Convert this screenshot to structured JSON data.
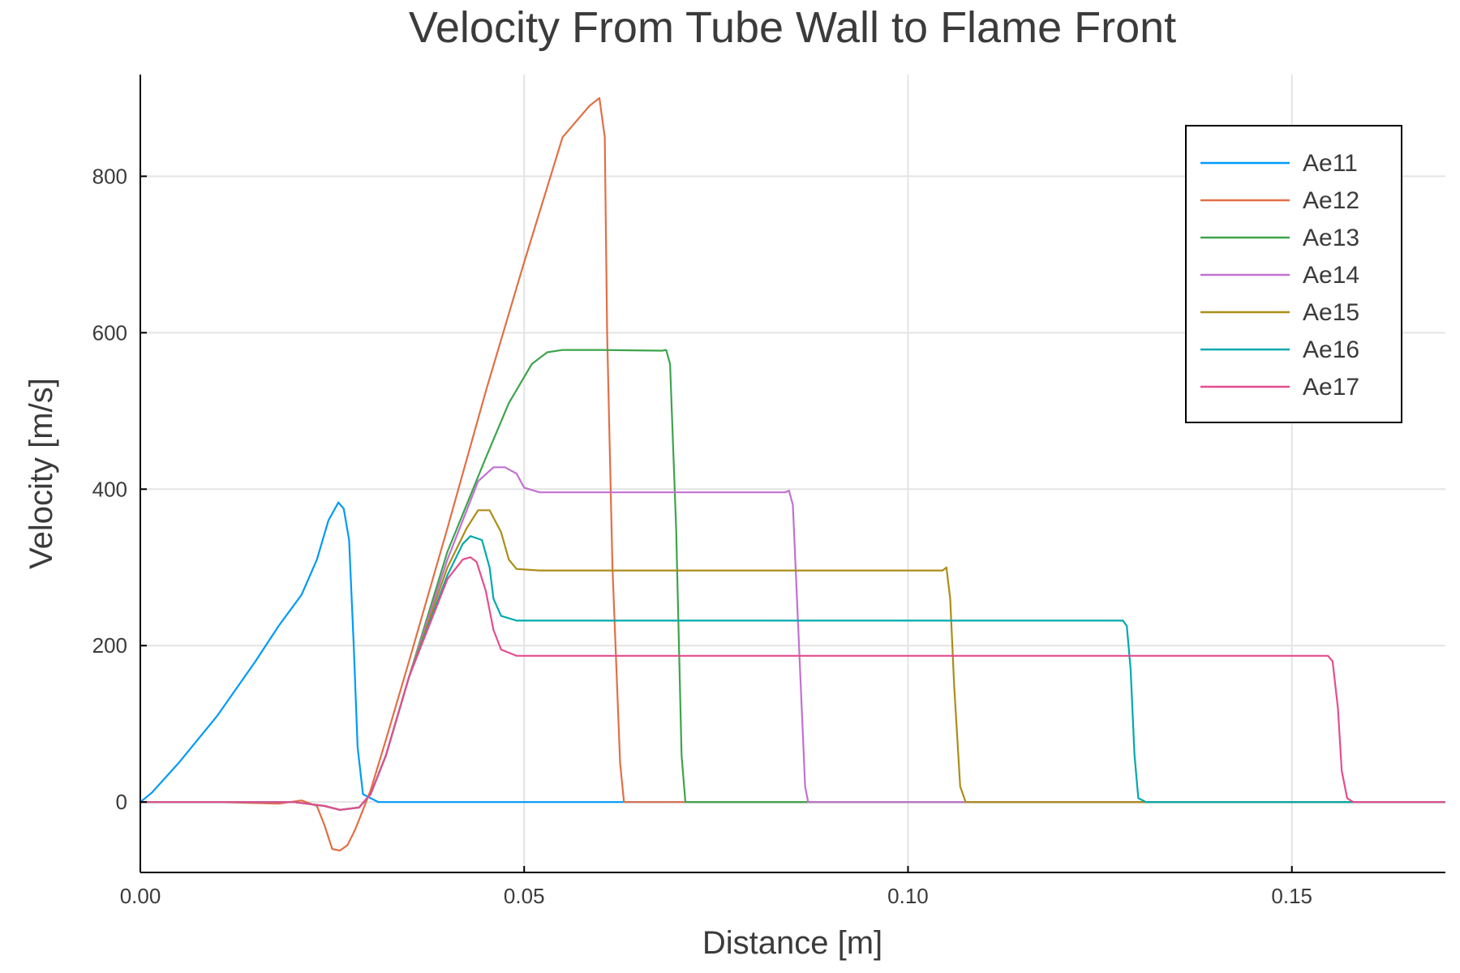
{
  "chart_data": {
    "type": "line",
    "title": "Velocity From Tube Wall to Flame Front",
    "xlabel": "Distance [m]",
    "ylabel": "Velocity [m/s]",
    "xlim": [
      0,
      0.17
    ],
    "ylim": [
      -90,
      930
    ],
    "xticks": [
      0,
      0.05,
      0.1,
      0.15
    ],
    "xtick_labels": [
      "0.00",
      "0.05",
      "0.10",
      "0.15"
    ],
    "yticks": [
      0,
      200,
      400,
      600,
      800
    ],
    "ytick_labels": [
      "0",
      "200",
      "400",
      "600",
      "800"
    ],
    "grid": true,
    "legend_position": "top-right",
    "series": [
      {
        "name": "Ae11",
        "color": "#009af9",
        "x": [
          0,
          0.0015,
          0.005,
          0.01,
          0.015,
          0.018,
          0.021,
          0.023,
          0.0245,
          0.0258,
          0.0265,
          0.0272,
          0.0278,
          0.0283,
          0.029,
          0.031,
          0.05,
          0.17
        ],
        "y": [
          0,
          12,
          50,
          110,
          180,
          225,
          265,
          310,
          360,
          383,
          375,
          335,
          200,
          70,
          10,
          0,
          0,
          0
        ]
      },
      {
        "name": "Ae12",
        "color": "#e26f46",
        "x": [
          0,
          0.01,
          0.018,
          0.021,
          0.023,
          0.024,
          0.025,
          0.026,
          0.027,
          0.028,
          0.029,
          0.03,
          0.032,
          0.035,
          0.04,
          0.045,
          0.05,
          0.055,
          0.0585,
          0.0598,
          0.0605,
          0.0608,
          0.0615,
          0.0625,
          0.063,
          0.17
        ],
        "y": [
          0,
          0,
          -2,
          2,
          -5,
          -30,
          -60,
          -62,
          -55,
          -35,
          -10,
          15,
          80,
          180,
          350,
          525,
          690,
          850,
          890,
          900,
          850,
          600,
          300,
          50,
          0,
          0
        ]
      },
      {
        "name": "Ae13",
        "color": "#3da44d",
        "x": [
          0,
          0.02,
          0.024,
          0.026,
          0.0285,
          0.03,
          0.032,
          0.035,
          0.04,
          0.045,
          0.048,
          0.051,
          0.053,
          0.055,
          0.06,
          0.068,
          0.0685,
          0.069,
          0.0698,
          0.0705,
          0.071,
          0.17
        ],
        "y": [
          0,
          0,
          -5,
          -10,
          -7,
          10,
          60,
          160,
          320,
          440,
          510,
          560,
          575,
          578,
          578,
          577,
          578,
          560,
          350,
          60,
          0,
          0
        ]
      },
      {
        "name": "Ae14",
        "color": "#c271d2",
        "x": [
          0,
          0.02,
          0.024,
          0.026,
          0.0285,
          0.03,
          0.032,
          0.035,
          0.04,
          0.044,
          0.046,
          0.0475,
          0.049,
          0.05,
          0.052,
          0.06,
          0.084,
          0.0845,
          0.085,
          0.0858,
          0.0866,
          0.087,
          0.17
        ],
        "y": [
          0,
          0,
          -5,
          -10,
          -7,
          10,
          60,
          160,
          310,
          410,
          428,
          428,
          420,
          402,
          396,
          396,
          396,
          398,
          380,
          200,
          20,
          0,
          0
        ]
      },
      {
        "name": "Ae15",
        "color": "#ac8d18",
        "x": [
          0,
          0.02,
          0.024,
          0.026,
          0.0285,
          0.03,
          0.032,
          0.035,
          0.04,
          0.0425,
          0.044,
          0.0455,
          0.047,
          0.048,
          0.049,
          0.052,
          0.08,
          0.1045,
          0.105,
          0.1055,
          0.106,
          0.1068,
          0.1075,
          0.17
        ],
        "y": [
          0,
          0,
          -5,
          -10,
          -7,
          10,
          60,
          160,
          300,
          350,
          373,
          373,
          345,
          310,
          298,
          296,
          296,
          296,
          300,
          260,
          150,
          20,
          0,
          0
        ]
      },
      {
        "name": "Ae16",
        "color": "#00a9ad",
        "x": [
          0,
          0.02,
          0.024,
          0.026,
          0.0285,
          0.03,
          0.032,
          0.035,
          0.04,
          0.042,
          0.043,
          0.0445,
          0.0455,
          0.046,
          0.047,
          0.049,
          0.06,
          0.128,
          0.1285,
          0.129,
          0.1295,
          0.13,
          0.131,
          0.17
        ],
        "y": [
          0,
          0,
          -5,
          -10,
          -7,
          10,
          60,
          160,
          290,
          330,
          340,
          335,
          300,
          260,
          238,
          232,
          232,
          232,
          225,
          170,
          60,
          5,
          0,
          0
        ]
      },
      {
        "name": "Ae17",
        "color": "#e44d8f",
        "x": [
          0,
          0.02,
          0.024,
          0.026,
          0.0285,
          0.03,
          0.032,
          0.035,
          0.04,
          0.042,
          0.043,
          0.0438,
          0.045,
          0.046,
          0.047,
          0.049,
          0.06,
          0.1547,
          0.1553,
          0.156,
          0.1565,
          0.1572,
          0.158,
          0.17
        ],
        "y": [
          0,
          0,
          -5,
          -10,
          -7,
          10,
          60,
          160,
          285,
          310,
          313,
          307,
          270,
          220,
          195,
          187,
          187,
          187,
          180,
          120,
          40,
          5,
          0,
          0
        ]
      }
    ]
  }
}
